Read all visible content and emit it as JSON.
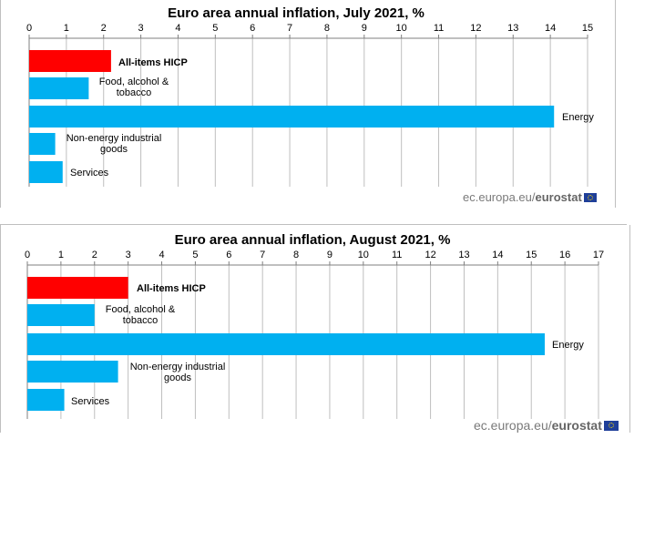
{
  "chart_data": [
    {
      "type": "bar",
      "orientation": "horizontal",
      "title": "Euro area annual inflation, July 2021, %",
      "categories": [
        "All-items HICP",
        "Food, alcohol & tobacco",
        "Energy",
        "Non-energy industrial goods",
        "Services"
      ],
      "category_lines": [
        [
          "All-items HICP"
        ],
        [
          "Food, alcohol &",
          "tobacco"
        ],
        [
          "Energy"
        ],
        [
          "Non-energy industrial",
          "goods"
        ],
        [
          "Services"
        ]
      ],
      "values": [
        2.2,
        1.6,
        14.1,
        0.7,
        0.9
      ],
      "bar_colors": [
        "#ff0000",
        "#00b0f0",
        "#00b0f0",
        "#00b0f0",
        "#00b0f0"
      ],
      "xlim": [
        0,
        15
      ],
      "ticks": [
        "0",
        "1",
        "2",
        "3",
        "4",
        "5",
        "6",
        "7",
        "8",
        "9",
        "10",
        "11",
        "12",
        "13",
        "14",
        "15"
      ],
      "grid": true,
      "xlabel": "",
      "ylabel": ""
    },
    {
      "type": "bar",
      "orientation": "horizontal",
      "title": "Euro area annual inflation, August 2021, %",
      "categories": [
        "All-items HICP",
        "Food, alcohol & tobacco",
        "Energy",
        "Non-energy industrial goods",
        "Services"
      ],
      "category_lines": [
        [
          "All-items HICP"
        ],
        [
          "Food, alcohol &",
          "tobacco"
        ],
        [
          "Energy"
        ],
        [
          "Non-energy industrial",
          "goods"
        ],
        [
          "Services"
        ]
      ],
      "values": [
        3.0,
        2.0,
        15.4,
        2.7,
        1.1
      ],
      "bar_colors": [
        "#ff0000",
        "#00b0f0",
        "#00b0f0",
        "#00b0f0",
        "#00b0f0"
      ],
      "xlim": [
        0,
        17
      ],
      "ticks": [
        "0",
        "1",
        "2",
        "3",
        "4",
        "5",
        "6",
        "7",
        "8",
        "9",
        "10",
        "11",
        "12",
        "13",
        "14",
        "15",
        "16",
        "17"
      ],
      "grid": true,
      "xlabel": "",
      "ylabel": ""
    }
  ],
  "source": {
    "domain_text": "ec.europa.eu/",
    "brand_text": "eurostat"
  },
  "colors": {
    "highlight": "#ff0000",
    "bar": "#00b0f0",
    "grid": "#bfbfbf",
    "brand_text": "#7a7a7a"
  }
}
